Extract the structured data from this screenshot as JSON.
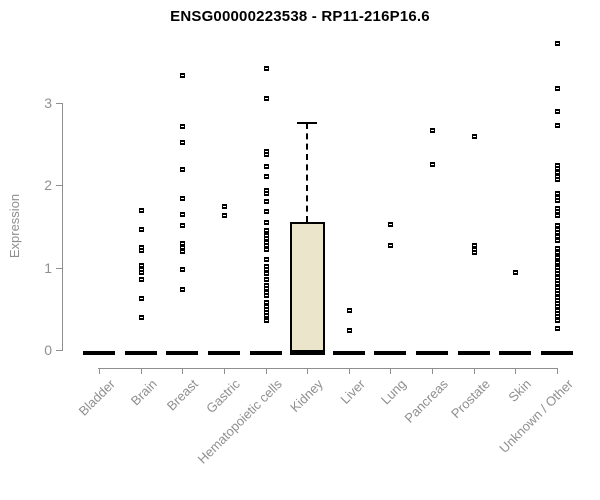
{
  "chart_data": {
    "type": "boxplot",
    "title": "ENSG00000223538 - RP11-216P16.6",
    "ylabel": "Expression",
    "xlabel": "",
    "ylim": [
      0,
      3.8
    ],
    "yticks": [
      0,
      1,
      2,
      3
    ],
    "grid": false,
    "legend": "none",
    "categories": [
      "Bladder",
      "Brain",
      "Breast",
      "Gastric",
      "Hematopoietic cells",
      "Kidney",
      "Liver",
      "Lung",
      "Pancreas",
      "Prostate",
      "Skin",
      "Unknown / Other"
    ],
    "colors": {
      "box_fill": "#EAE5CB",
      "box_border": "#000000",
      "point": "#000000",
      "axis": "#8F8F8F",
      "title": "#000000"
    },
    "groups": [
      {
        "name": "Bladder",
        "zero_bar": true,
        "points": []
      },
      {
        "name": "Brain",
        "zero_bar": true,
        "points": [
          1.7,
          1.47,
          1.25,
          1.21,
          1.03,
          0.99,
          0.95,
          0.86,
          0.63,
          0.4
        ]
      },
      {
        "name": "Breast",
        "zero_bar": true,
        "points": [
          3.34,
          2.72,
          2.53,
          2.2,
          1.85,
          1.65,
          1.52,
          1.3,
          1.25,
          1.2,
          0.98,
          0.74
        ]
      },
      {
        "name": "Gastric",
        "zero_bar": true,
        "points": [
          1.75,
          1.64
        ]
      },
      {
        "name": "Hematopoietic cells",
        "zero_bar": true,
        "points": [
          3.43,
          3.06,
          2.42,
          2.38,
          2.23,
          2.12,
          1.95,
          1.91,
          1.81,
          1.69,
          1.56,
          1.46,
          1.4,
          1.36,
          1.31,
          1.27,
          1.23,
          1.11,
          1.02,
          0.98,
          0.94,
          0.86,
          0.79,
          0.75,
          0.71,
          0.67,
          0.58,
          0.54,
          0.5,
          0.46,
          0.42,
          0.36
        ]
      },
      {
        "name": "Kidney",
        "zero_bar": true,
        "points": [],
        "box": {
          "whisker_low": 0,
          "q1": 0,
          "median": 0,
          "q3": 1.55,
          "whisker_high": 2.76
        }
      },
      {
        "name": "Liver",
        "zero_bar": true,
        "points": [
          0.49,
          0.24
        ]
      },
      {
        "name": "Lung",
        "zero_bar": true,
        "points": [
          1.53,
          1.27
        ]
      },
      {
        "name": "Pancreas",
        "zero_bar": true,
        "points": [
          2.67,
          2.26
        ]
      },
      {
        "name": "Prostate",
        "zero_bar": true,
        "points": [
          2.6,
          1.28,
          1.23,
          1.19
        ]
      },
      {
        "name": "Skin",
        "zero_bar": true,
        "points": [
          0.95
        ]
      },
      {
        "name": "Unknown / Other",
        "zero_bar": true,
        "points": [
          3.73,
          3.18,
          2.9,
          2.73,
          2.25,
          2.21,
          2.16,
          2.12,
          2.08,
          1.91,
          1.86,
          1.82,
          1.73,
          1.69,
          1.64,
          1.52,
          1.47,
          1.43,
          1.38,
          1.34,
          1.24,
          1.19,
          1.13,
          1.07,
          1.01,
          0.97,
          0.93,
          0.89,
          0.85,
          0.81,
          0.77,
          0.73,
          0.69,
          0.65,
          0.61,
          0.57,
          0.53,
          0.49,
          0.45,
          0.41,
          0.36,
          0.27
        ]
      }
    ]
  }
}
